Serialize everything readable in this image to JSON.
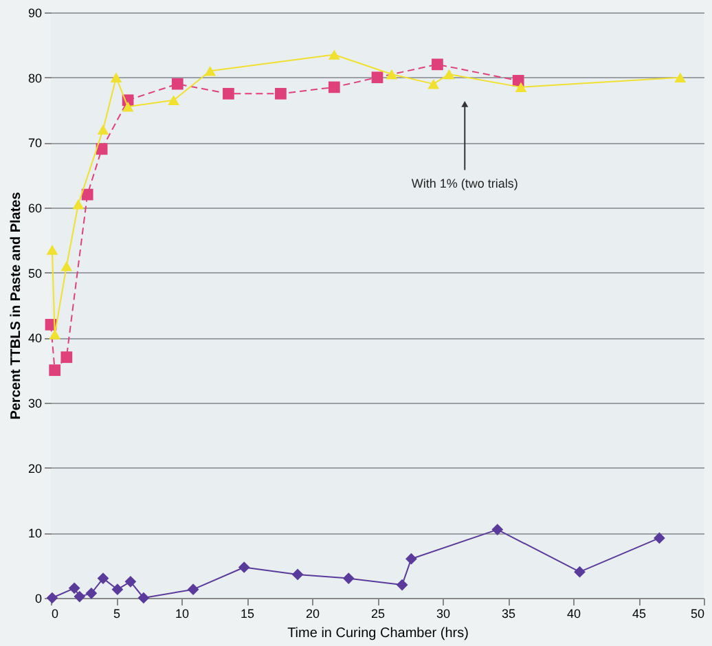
{
  "chart_data": {
    "type": "line",
    "xlabel": "Time in Curing Chamber (hrs)",
    "ylabel": "Percent TTBLS in Paste and Plates",
    "xlim": [
      0,
      50
    ],
    "xticks": [
      0,
      5,
      10,
      15,
      20,
      25,
      30,
      35,
      40,
      45,
      50
    ],
    "ylim": [
      0,
      90
    ],
    "yticks": [
      0,
      10,
      20,
      30,
      40,
      50,
      60,
      70,
      80,
      90
    ],
    "grid": "y",
    "series": [
      {
        "color": "#e0407a",
        "marker": "square",
        "line_style": "dashed",
        "x": [
          0,
          0.3,
          1.2,
          2.8,
          3.9,
          5.9,
          9.7,
          13.6,
          17.6,
          21.7,
          25,
          29.6,
          35.8
        ],
        "values": [
          42,
          35,
          37,
          62,
          69,
          76.5,
          79,
          77.5,
          77.5,
          78.5,
          80,
          82,
          79.5
        ]
      },
      {
        "color": "#f0e030",
        "marker": "triangle",
        "line_style": "solid",
        "x": [
          0.1,
          0.3,
          1.2,
          2.1,
          4.0,
          5.0,
          5.9,
          9.4,
          12.2,
          21.7,
          26.1,
          29.3,
          30.5,
          36,
          48.2
        ],
        "values": [
          53.5,
          40.5,
          51,
          60.5,
          72,
          80,
          75.5,
          76.5,
          81,
          83.5,
          80.5,
          79,
          80.5,
          78.5,
          80
        ]
      },
      {
        "color": "#5a3a9a",
        "marker": "diamond",
        "line_style": "solid",
        "x": [
          0.1,
          1.8,
          2.2,
          3.1,
          4.0,
          5.1,
          6.1,
          7.1,
          10.9,
          14.8,
          18.9,
          22.8,
          26.9,
          27.6,
          34.2,
          40.5,
          46.6
        ],
        "values": [
          0,
          1.5,
          0.2,
          0.7,
          3,
          1.3,
          2.5,
          0,
          1.3,
          4.7,
          3.6,
          3,
          2,
          6,
          10.5,
          4,
          9.2
        ]
      }
    ],
    "annotations": [
      "With 1% (two trials)"
    ]
  }
}
